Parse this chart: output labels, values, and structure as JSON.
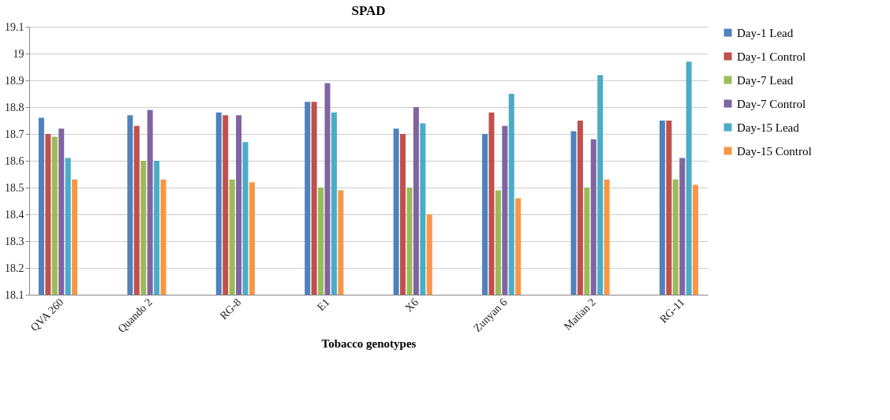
{
  "chart_data": {
    "type": "bar",
    "title": "SPAD",
    "xlabel": "Tobacco genotypes",
    "categories": [
      "QVA 260",
      "Quando 2",
      "RG-8",
      "E1",
      "X6",
      "Zunyan 6",
      "Matian 2",
      "RG-11"
    ],
    "series": [
      {
        "name": "Day-1 Lead",
        "color": "#4f81bd",
        "values": [
          18.76,
          18.77,
          18.78,
          18.82,
          18.72,
          18.7,
          18.71,
          18.75
        ]
      },
      {
        "name": "Day-1 Control",
        "color": "#c0504d",
        "values": [
          18.7,
          18.73,
          18.77,
          18.82,
          18.7,
          18.78,
          18.75,
          18.75
        ]
      },
      {
        "name": "Day-7 Lead",
        "color": "#9bbb59",
        "values": [
          18.69,
          18.6,
          18.53,
          18.5,
          18.5,
          18.49,
          18.5,
          18.53
        ]
      },
      {
        "name": "Day-7 Control",
        "color": "#8064a2",
        "values": [
          18.72,
          18.79,
          18.77,
          18.89,
          18.8,
          18.73,
          18.68,
          18.61
        ]
      },
      {
        "name": "Day-15 Lead",
        "color": "#4bacc6",
        "values": [
          18.61,
          18.6,
          18.67,
          18.78,
          18.74,
          18.85,
          18.92,
          18.97
        ]
      },
      {
        "name": "Day-15 Control",
        "color": "#f79646",
        "values": [
          18.53,
          18.53,
          18.52,
          18.49,
          18.4,
          18.46,
          18.53,
          18.51
        ]
      }
    ],
    "ylim": [
      18.1,
      19.1
    ],
    "yticks": [
      18.1,
      18.2,
      18.3,
      18.4,
      18.5,
      18.6,
      18.7,
      18.8,
      18.9,
      19,
      19.1
    ],
    "grid": "y",
    "legend": "right"
  }
}
